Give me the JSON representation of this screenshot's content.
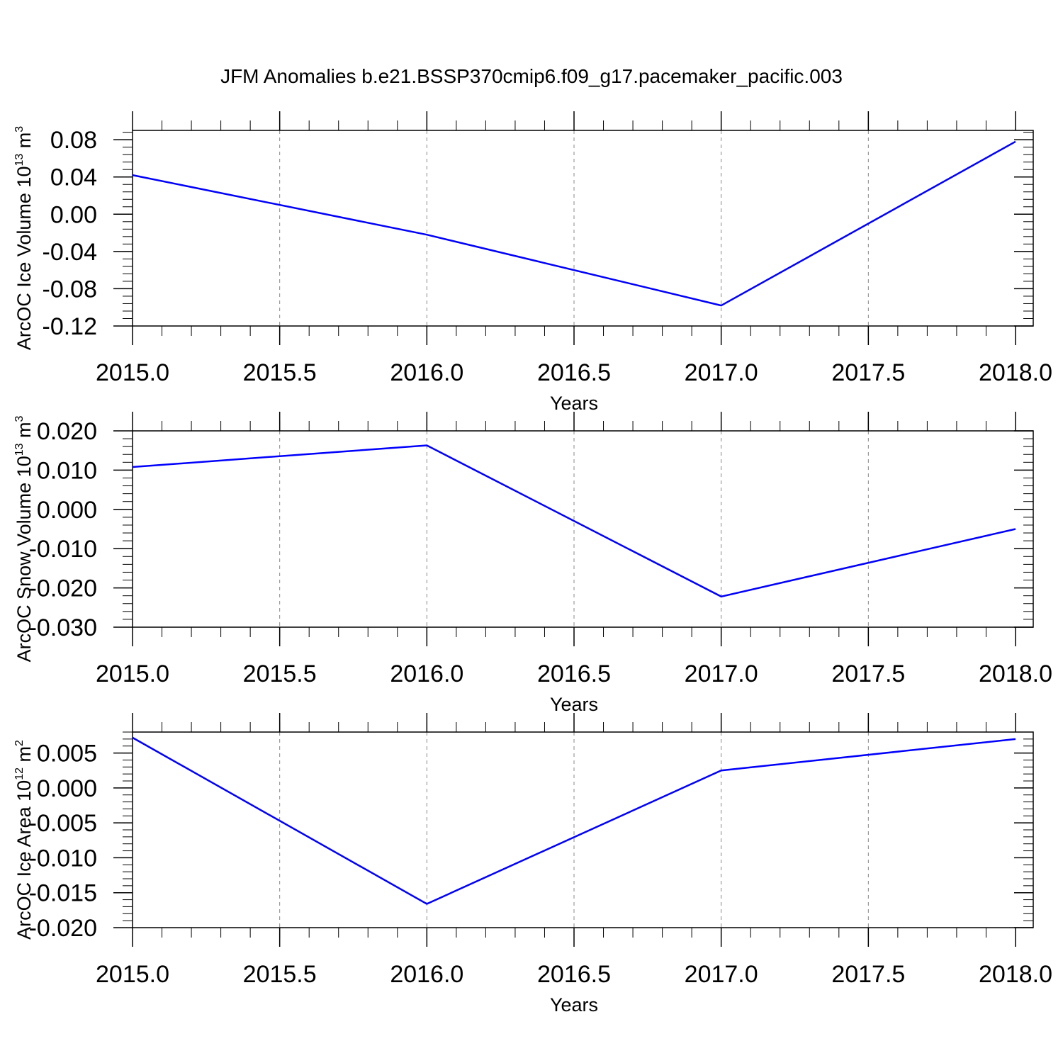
{
  "title": "JFM Anomalies b.e21.BSSP370cmip6.f09_g17.pacemaker_pacific.003",
  "colors": {
    "line": "#0000ff",
    "axis": "#000000",
    "grid": "#888888",
    "background": "#ffffff"
  },
  "chart_data": [
    {
      "type": "line",
      "xlabel": "Years",
      "ylabel": {
        "text": "ArcOC Ice Volume 10",
        "exp": "13",
        "unit": " m",
        "unit_exp": "3"
      },
      "x": [
        2015,
        2016,
        2017,
        2018
      ],
      "values": [
        0.042,
        -0.022,
        -0.098,
        0.078
      ],
      "xlim": [
        2015,
        2018
      ],
      "ylim": [
        -0.12,
        0.09
      ],
      "xticks": [
        2015.0,
        2015.5,
        2016.0,
        2016.5,
        2017.0,
        2017.5,
        2018.0
      ],
      "xtick_labels": [
        "2015.0",
        "2015.5",
        "2016.0",
        "2016.5",
        "2017.0",
        "2017.5",
        "2018.0"
      ],
      "yticks": [
        -0.12,
        -0.08,
        -0.04,
        0.0,
        0.04,
        0.08
      ],
      "ytick_labels": [
        "-0.12",
        "-0.08",
        "-0.04",
        "0.00",
        "0.04",
        "0.08"
      ],
      "yminor_step": 0.008,
      "grid": "vertical dashed",
      "legend": "none"
    },
    {
      "type": "line",
      "xlabel": "Years",
      "ylabel": {
        "text": "ArcOC Snow Volume 10",
        "exp": "13",
        "unit": " m",
        "unit_exp": "3"
      },
      "x": [
        2015,
        2016,
        2017,
        2018
      ],
      "values": [
        0.0108,
        0.0163,
        -0.0222,
        -0.005
      ],
      "xlim": [
        2015,
        2018
      ],
      "ylim": [
        -0.03,
        0.02
      ],
      "xticks": [
        2015.0,
        2015.5,
        2016.0,
        2016.5,
        2017.0,
        2017.5,
        2018.0
      ],
      "xtick_labels": [
        "2015.0",
        "2015.5",
        "2016.0",
        "2016.5",
        "2017.0",
        "2017.5",
        "2018.0"
      ],
      "yticks": [
        -0.03,
        -0.02,
        -0.01,
        0.0,
        0.01,
        0.02
      ],
      "ytick_labels": [
        "-0.030",
        "-0.020",
        "-0.010",
        "0.000",
        "0.010",
        "0.020"
      ],
      "yminor_step": 0.002,
      "grid": "vertical dashed",
      "legend": "none"
    },
    {
      "type": "line",
      "xlabel": "Years",
      "ylabel": {
        "text": "ArcOC Ice Area 10",
        "exp": "12",
        "unit": " m",
        "unit_exp": "2"
      },
      "x": [
        2015,
        2016,
        2017,
        2018
      ],
      "values": [
        0.0072,
        -0.0166,
        0.0025,
        0.007
      ],
      "xlim": [
        2015,
        2018
      ],
      "ylim": [
        -0.02,
        0.008
      ],
      "xticks": [
        2015.0,
        2015.5,
        2016.0,
        2016.5,
        2017.0,
        2017.5,
        2018.0
      ],
      "xtick_labels": [
        "2015.0",
        "2015.5",
        "2016.0",
        "2016.5",
        "2017.0",
        "2017.5",
        "2018.0"
      ],
      "yticks": [
        -0.02,
        -0.015,
        -0.01,
        -0.005,
        0.0,
        0.005
      ],
      "ytick_labels": [
        "-0.020",
        "-0.015",
        "-0.010",
        "-0.005",
        "0.000",
        "0.005"
      ],
      "yminor_step": 0.001,
      "grid": "vertical dashed",
      "legend": "none"
    }
  ]
}
